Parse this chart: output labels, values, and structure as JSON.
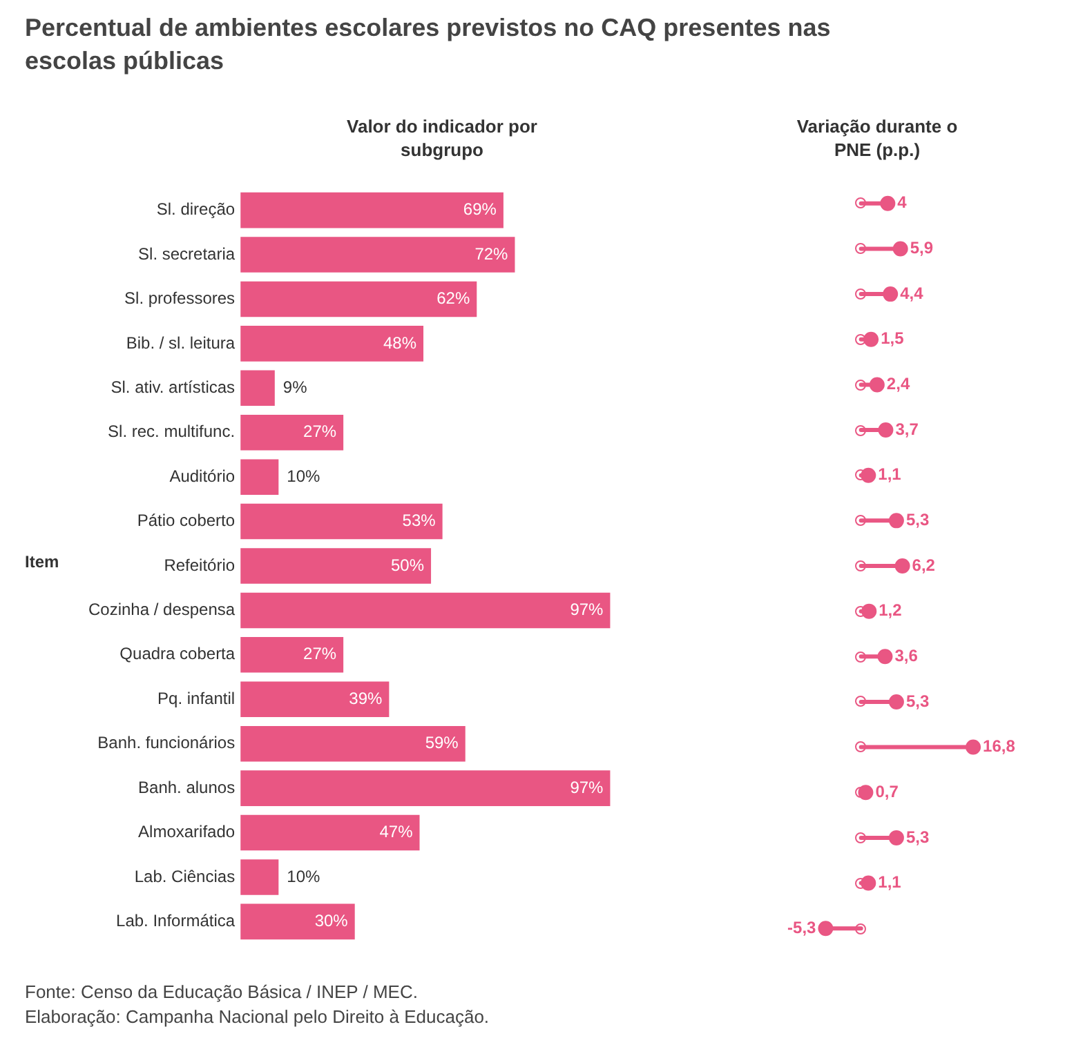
{
  "chart_data": [
    {
      "type": "bar",
      "orientation": "horizontal",
      "title": "Percentual de ambientes escolares previstos no CAQ presentes nas escolas públicas",
      "subtitle": "Valor do indicador por subgrupo",
      "ylabel": "Item",
      "categories": [
        "Sl. direção",
        "Sl. secretaria",
        "Sl. professores",
        "Bib. / sl. leitura",
        "Sl. ativ. artísticas",
        "Sl. rec. multifunc.",
        "Auditório",
        "Pátio coberto",
        "Refeitório",
        "Cozinha / despensa",
        "Quadra coberta",
        "Pq. infantil",
        "Banh. funcionários",
        "Banh. alunos",
        "Almoxarifado",
        "Lab. Ciências",
        "Lab. Informática"
      ],
      "values": [
        69,
        72,
        62,
        48,
        9,
        27,
        10,
        53,
        50,
        97,
        27,
        39,
        59,
        97,
        47,
        10,
        30
      ],
      "value_labels": [
        "69%",
        "72%",
        "62%",
        "48%",
        "9%",
        "27%",
        "10%",
        "53%",
        "50%",
        "97%",
        "27%",
        "39%",
        "59%",
        "97%",
        "47%",
        "10%",
        "30%"
      ],
      "color": "#e95683",
      "grid": false,
      "legend": false,
      "tick_labels": "y",
      "annotations": [
        "Fonte: Censo da Educação Básica / INEP / MEC.",
        "Elaboração: Campanha Nacional pelo Direito à Educação."
      ]
    },
    {
      "type": "lollipop",
      "orientation": "horizontal",
      "title": "Variação durante o PNE (p.p.)",
      "categories": [
        null,
        null,
        null,
        null,
        null,
        null,
        null,
        null,
        null,
        null,
        null,
        null,
        null,
        null,
        null,
        null,
        null
      ],
      "values": [
        4,
        5.9,
        4.4,
        1.5,
        2.4,
        3.7,
        1.1,
        5.3,
        6.2,
        1.2,
        3.6,
        5.3,
        16.8,
        0.7,
        5.3,
        1.1,
        -5.3
      ],
      "value_labels": [
        "4",
        "5,9",
        "4,4",
        "1,5",
        "2,4",
        "3,7",
        "1,1",
        "5,3",
        "6,2",
        "1,2",
        "3,6",
        "5,3",
        "16,8",
        "0,7",
        "5,3",
        "1,1",
        "-5,3"
      ],
      "color": "#e95683",
      "grid": false,
      "legend": false,
      "tick_labels": false
    }
  ]
}
